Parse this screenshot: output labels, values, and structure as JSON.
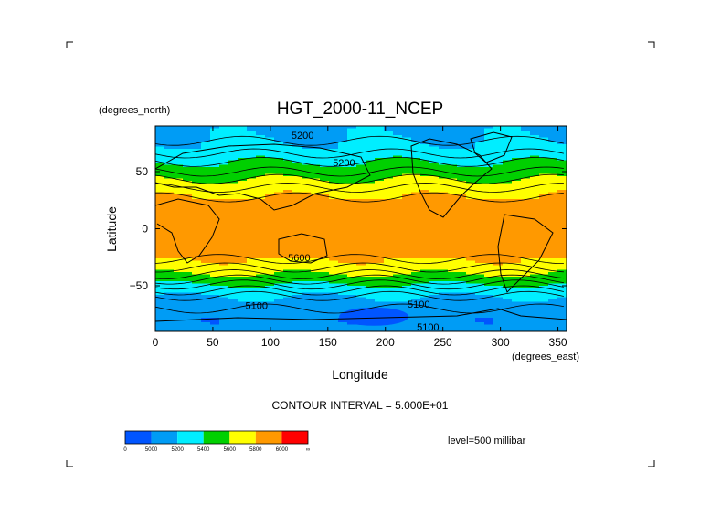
{
  "chart_data": {
    "type": "heatmap",
    "title": "HGT_2000-11_NCEP",
    "xlabel": "Longitude",
    "ylabel": "Latitude",
    "x_units": "(degrees_east)",
    "y_units": "(degrees_north)",
    "xlim": [
      0,
      357.5
    ],
    "ylim": [
      -90,
      90
    ],
    "x_ticks": [
      0,
      50,
      100,
      150,
      200,
      250,
      300,
      350
    ],
    "y_ticks": [
      50,
      0,
      -50
    ],
    "contour_interval_label": "CONTOUR INTERVAL = 5.000E+01",
    "level_label": "level=500 millibar",
    "levels": [
      "0",
      "5000",
      "5200",
      "5400",
      "5600",
      "5800",
      "6000",
      "∞"
    ],
    "level_values": [
      0,
      5000,
      5200,
      5400,
      5600,
      5800,
      6000
    ],
    "colors": [
      "#0055ff",
      "#009cf5",
      "#00eeff",
      "#00d000",
      "#ffff00",
      "#ff9900",
      "#ff0000"
    ],
    "latitude_profile": [
      {
        "lat": 90,
        "z": 5150
      },
      {
        "lat": 80,
        "z": 5180
      },
      {
        "lat": 70,
        "z": 5250
      },
      {
        "lat": 60,
        "z": 5380
      },
      {
        "lat": 50,
        "z": 5500
      },
      {
        "lat": 40,
        "z": 5650
      },
      {
        "lat": 30,
        "z": 5780
      },
      {
        "lat": 20,
        "z": 5860
      },
      {
        "lat": 0,
        "z": 5880
      },
      {
        "lat": -20,
        "z": 5870
      },
      {
        "lat": -30,
        "z": 5760
      },
      {
        "lat": -40,
        "z": 5600
      },
      {
        "lat": -50,
        "z": 5380
      },
      {
        "lat": -60,
        "z": 5180
      },
      {
        "lat": -70,
        "z": 5100
      },
      {
        "lat": -80,
        "z": 5050
      },
      {
        "lat": -90,
        "z": 5080
      }
    ],
    "contour_labels": [
      {
        "text": "5200",
        "lon": 128,
        "lat": 82
      },
      {
        "text": "5200",
        "lon": 164,
        "lat": 58
      },
      {
        "text": "5600",
        "lon": 125,
        "lat": -25
      },
      {
        "text": "5100",
        "lon": 88,
        "lat": -67
      },
      {
        "text": "5100",
        "lon": 229,
        "lat": -66
      },
      {
        "text": "5100",
        "lon": 237,
        "lat": -86
      }
    ]
  }
}
